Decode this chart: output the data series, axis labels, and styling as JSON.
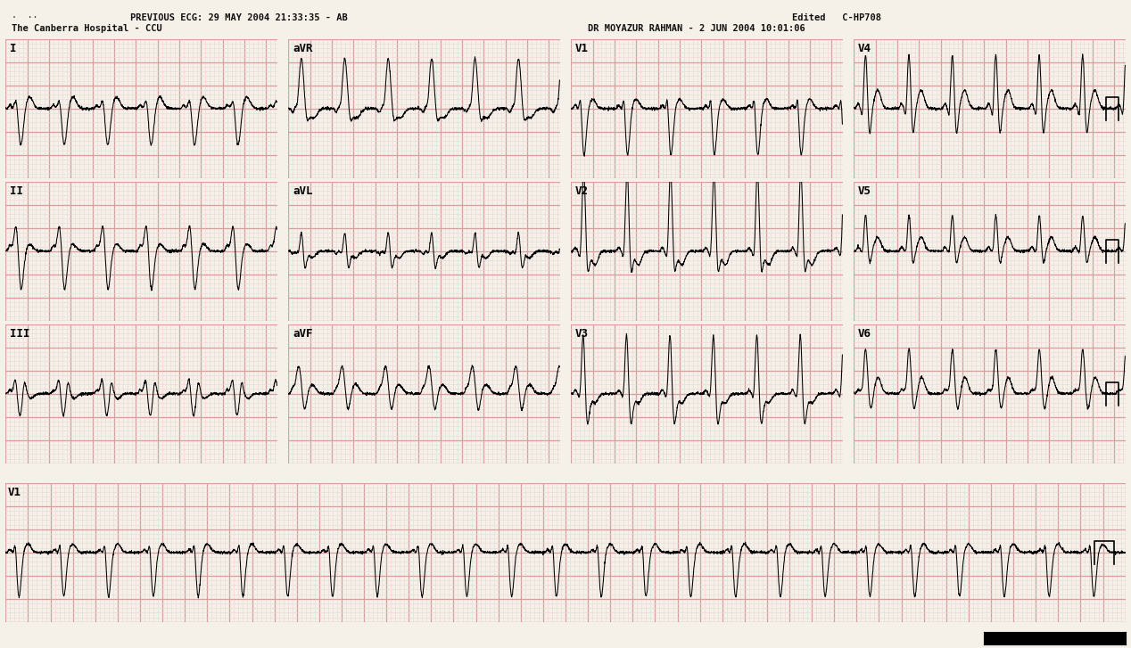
{
  "title_left": "PREVIOUS ECG: 29 MAY 2004 21:33:35 - AB",
  "subtitle_left": "The Canberra Hospital - CCU",
  "title_right_top": "Edited   C-HP708",
  "title_right_bottom": "DR MOYAZUR RAHMAN - 2 JUN 2004 10:01:06",
  "background_color": "#f5f0e8",
  "grid_major_color": "#d4a0a0",
  "grid_minor_color": "#ead8d8",
  "ecg_color": "#000000",
  "fig_width": 12.68,
  "fig_height": 7.27,
  "dpi": 100
}
